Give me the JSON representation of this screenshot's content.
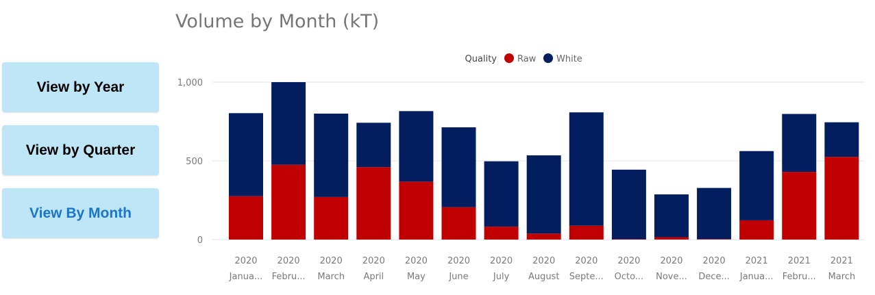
{
  "nav": {
    "view_by_year": "View by Year",
    "view_by_quarter": "View by Quarter",
    "view_by_month": "View By Month",
    "active": "view_by_month"
  },
  "colors": {
    "raw": "#c00000",
    "white": "#031e5e",
    "button_bg": "#bfe6f6",
    "active_text": "#1a76c8"
  },
  "chart_data": {
    "type": "bar",
    "stacked": true,
    "title": "Volume by Month (kT)",
    "legend_title": "Quality",
    "legend_position": "top-center",
    "ylim": [
      0,
      1000
    ],
    "yticks": [
      0,
      500,
      1000
    ],
    "ytick_labels": [
      "0",
      "500",
      "1,000"
    ],
    "grid": true,
    "categories": [
      [
        "2020",
        "Janua..."
      ],
      [
        "2020",
        "Febru..."
      ],
      [
        "2020",
        "March"
      ],
      [
        "2020",
        "April"
      ],
      [
        "2020",
        "May"
      ],
      [
        "2020",
        "June"
      ],
      [
        "2020",
        "July"
      ],
      [
        "2020",
        "August"
      ],
      [
        "2020",
        "Septe..."
      ],
      [
        "2020",
        "Octo..."
      ],
      [
        "2020",
        "Nove..."
      ],
      [
        "2020",
        "Dece..."
      ],
      [
        "2021",
        "Janua..."
      ],
      [
        "2021",
        "Febru..."
      ],
      [
        "2021",
        "March"
      ]
    ],
    "series": [
      {
        "name": "Raw",
        "color": "#c00000",
        "values": [
          275,
          475,
          270,
          460,
          368,
          205,
          82,
          38,
          88,
          2,
          15,
          3,
          122,
          430,
          525
        ]
      },
      {
        "name": "White",
        "color": "#031e5e",
        "values": [
          528,
          525,
          530,
          282,
          448,
          508,
          415,
          497,
          720,
          442,
          272,
          325,
          440,
          368,
          220
        ]
      }
    ]
  }
}
